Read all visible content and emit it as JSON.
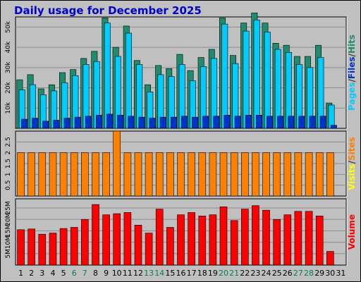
{
  "chart_data": {
    "type": "bar",
    "title": "Daily usage for December 2025",
    "days": [
      "1",
      "2",
      "3",
      "4",
      "5",
      "6",
      "7",
      "8",
      "9",
      "10",
      "11",
      "12",
      "13",
      "14",
      "15",
      "16",
      "17",
      "18",
      "19",
      "20",
      "21",
      "22",
      "23",
      "24",
      "25",
      "26",
      "27",
      "28",
      "29",
      "30",
      "31"
    ],
    "weekend_days": [
      6,
      7,
      13,
      14,
      20,
      21,
      27,
      28
    ],
    "colors": {
      "title": "#0000cc",
      "hits": "#1f8c70",
      "files": "#00ccff",
      "pages": "#0033cc",
      "visits": "#ffff00",
      "sites": "#ff8000",
      "volume": "#ff0000",
      "weekend_label": "#00804d",
      "plot_bg": "#c0c0c0",
      "grid": "#8c8c8c"
    },
    "panels": [
      {
        "name": "hits-files-pages",
        "ylim": [
          0,
          55000
        ],
        "ticks": [
          {
            "value": 10000,
            "label": "10k"
          },
          {
            "value": 20000,
            "label": "20k"
          },
          {
            "value": 30000,
            "label": "30k"
          },
          {
            "value": 40000,
            "label": "40k"
          },
          {
            "value": 50000,
            "label": "50k"
          }
        ],
        "legend": [
          "Pages",
          "/",
          "Files",
          "/",
          "Hits"
        ],
        "legend_colors": [
          "#00ccff",
          "#333333",
          "#0033cc",
          "#333333",
          "#1f8c70"
        ],
        "series": [
          {
            "name": "Hits",
            "color": "#1f8c70",
            "values": [
              24000,
              26500,
              19500,
              21500,
              27500,
              29000,
              34500,
              38000,
              54500,
              40000,
              50500,
              33500,
              21500,
              31000,
              29500,
              36500,
              28500,
              35000,
              39000,
              54500,
              36000,
              52000,
              57000,
              52000,
              42000,
              41000,
              35500,
              35500,
              41000,
              12500,
              0
            ]
          },
          {
            "name": "Files",
            "color": "#00ccff",
            "values": [
              19000,
              21500,
              16500,
              18500,
              22500,
              26000,
              31500,
              33000,
              52000,
              35500,
              47000,
              31500,
              18000,
              26500,
              25500,
              31500,
              23500,
              30500,
              34500,
              51500,
              32000,
              48000,
              53500,
              47500,
              39000,
              37500,
              31500,
              30000,
              35000,
              11500,
              0
            ]
          },
          {
            "name": "Pages",
            "color": "#0033cc",
            "values": [
              4500,
              5000,
              3500,
              4000,
              5000,
              5500,
              6000,
              6500,
              7000,
              6500,
              6000,
              5500,
              5000,
              5500,
              5500,
              6000,
              5500,
              6000,
              6000,
              6500,
              6000,
              6500,
              6500,
              6000,
              6000,
              6000,
              6000,
              6000,
              6000,
              1500,
              0
            ]
          }
        ]
      },
      {
        "name": "visits-sites",
        "ylim": [
          0,
          3
        ],
        "ticks": [
          {
            "value": 0.5,
            "label": "0.5"
          },
          {
            "value": 1,
            "label": "1"
          },
          {
            "value": 1.5,
            "label": "1.5"
          },
          {
            "value": 2,
            "label": "2"
          },
          {
            "value": 2.5,
            "label": "2.5"
          }
        ],
        "legend": [
          "Visits",
          "/",
          "Sites"
        ],
        "legend_colors": [
          "#ffff00",
          "#333333",
          "#ff8000"
        ],
        "series": [
          {
            "name": "Sites",
            "color": "#ff8000",
            "values": [
              2,
              2,
              2,
              2,
              2,
              2,
              2,
              2,
              2,
              3,
              2,
              2,
              2,
              2,
              2,
              2,
              2,
              2,
              2,
              2,
              2,
              2,
              2,
              2,
              2,
              2,
              2,
              2,
              2,
              2,
              0
            ]
          }
        ]
      },
      {
        "name": "volume",
        "ylim": [
          0,
          29000000
        ],
        "ticks": [
          {
            "value": 5000000,
            "label": "5M"
          },
          {
            "value": 10000000,
            "label": "10M"
          },
          {
            "value": 15000000,
            "label": "15M"
          },
          {
            "value": 20000000,
            "label": "20M"
          },
          {
            "value": 25000000,
            "label": "25M"
          }
        ],
        "legend": [
          "Volume"
        ],
        "legend_colors": [
          "#ff0000"
        ],
        "series": [
          {
            "name": "Volume",
            "color": "#ff0000",
            "values": [
              15500000,
              15800000,
              13500000,
              14000000,
              16000000,
              16500000,
              20000000,
              26500000,
              22000000,
              22500000,
              23000000,
              17500000,
              14000000,
              24500000,
              16500000,
              22000000,
              23000000,
              21500000,
              22000000,
              25500000,
              19500000,
              24500000,
              26000000,
              24000000,
              20000000,
              22000000,
              23500000,
              23500000,
              21500000,
              6000000,
              0
            ]
          }
        ]
      }
    ]
  }
}
